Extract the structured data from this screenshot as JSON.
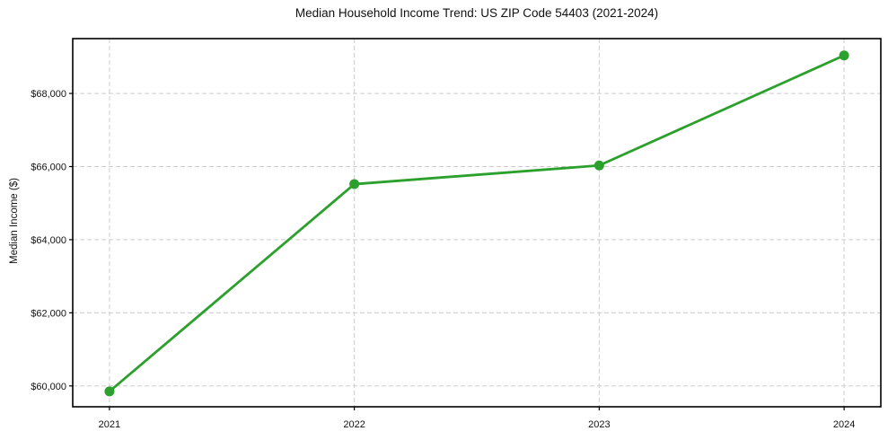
{
  "chart_data": {
    "type": "line",
    "title": "Median Household Income Trend: US ZIP Code 54403 (2021-2024)",
    "xlabel": "",
    "ylabel": "Median Income ($)",
    "x": [
      2021,
      2022,
      2023,
      2024
    ],
    "series": [
      {
        "name": "Median Household Income",
        "values": [
          59850,
          65520,
          66030,
          69040
        ]
      }
    ],
    "x_tick_labels": [
      "2021",
      "2022",
      "2023",
      "2024"
    ],
    "y_ticks": [
      60000,
      62000,
      64000,
      66000,
      68000
    ],
    "y_tick_labels": [
      "$60,000",
      "$62,000",
      "$64,000",
      "$66,000",
      "$68,000"
    ],
    "xlim": [
      2020.85,
      2024.15
    ],
    "ylim": [
      59430,
      69500
    ],
    "grid": "dashed both",
    "legend": "none",
    "colors": {
      "line": "#2ca02c",
      "marker": "#2ca02c",
      "grid": "#cccccc",
      "spine": "#000000",
      "text": "#111111",
      "background": "#ffffff"
    },
    "marker": "circle"
  }
}
